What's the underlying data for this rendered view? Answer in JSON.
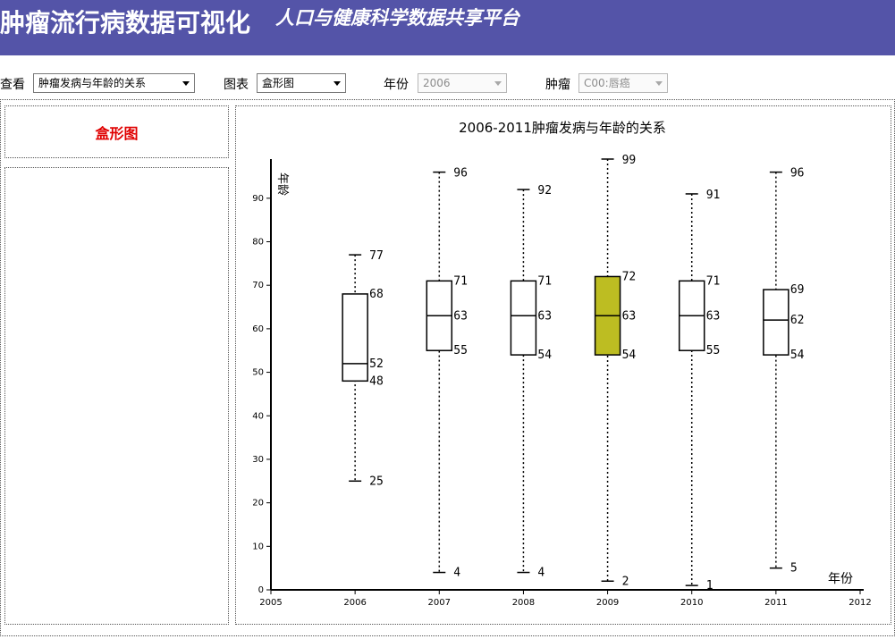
{
  "header": {
    "title": "肿瘤流行病数据可视化",
    "subtitle": "人口与健康科学数据共享平台"
  },
  "controls": {
    "view_label": "查看",
    "view_value": "肿瘤发病与年龄的关系",
    "chart_label": "图表",
    "chart_value": "盒形图",
    "year_label": "年份",
    "year_value": "2006",
    "tumor_label": "肿瘤",
    "tumor_value": "C00:唇癌"
  },
  "side_panel": {
    "chart_type_title": "盒形图"
  },
  "colors": {
    "header_bg": "#5454a8",
    "highlight_box": "#bdbd22",
    "chart_type_title": "#e00000"
  },
  "chart_data": {
    "type": "box",
    "title": "2006-2011肿瘤发病与年龄的关系",
    "xlabel": "年份",
    "ylabel": "年龄",
    "xlim": [
      2005,
      2012
    ],
    "ylim": [
      0,
      99
    ],
    "x_ticks": [
      "2005",
      "2006",
      "2007",
      "2008",
      "2009",
      "2010",
      "2011",
      "2012"
    ],
    "y_ticks": [
      0,
      10,
      20,
      30,
      40,
      50,
      60,
      70,
      80,
      90
    ],
    "highlighted": "2009",
    "boxes": [
      {
        "year": "2006",
        "min": 25,
        "q1": 48,
        "median": 52,
        "q3": 68,
        "max": 77
      },
      {
        "year": "2007",
        "min": 4,
        "q1": 55,
        "median": 63,
        "q3": 71,
        "max": 96
      },
      {
        "year": "2008",
        "min": 4,
        "q1": 54,
        "median": 63,
        "q3": 71,
        "max": 92
      },
      {
        "year": "2009",
        "min": 2,
        "q1": 54,
        "median": 63,
        "q3": 72,
        "max": 99
      },
      {
        "year": "2010",
        "min": 1,
        "q1": 55,
        "median": 63,
        "q3": 71,
        "max": 91
      },
      {
        "year": "2011",
        "min": 5,
        "q1": 54,
        "median": 62,
        "q3": 69,
        "max": 96
      }
    ]
  }
}
